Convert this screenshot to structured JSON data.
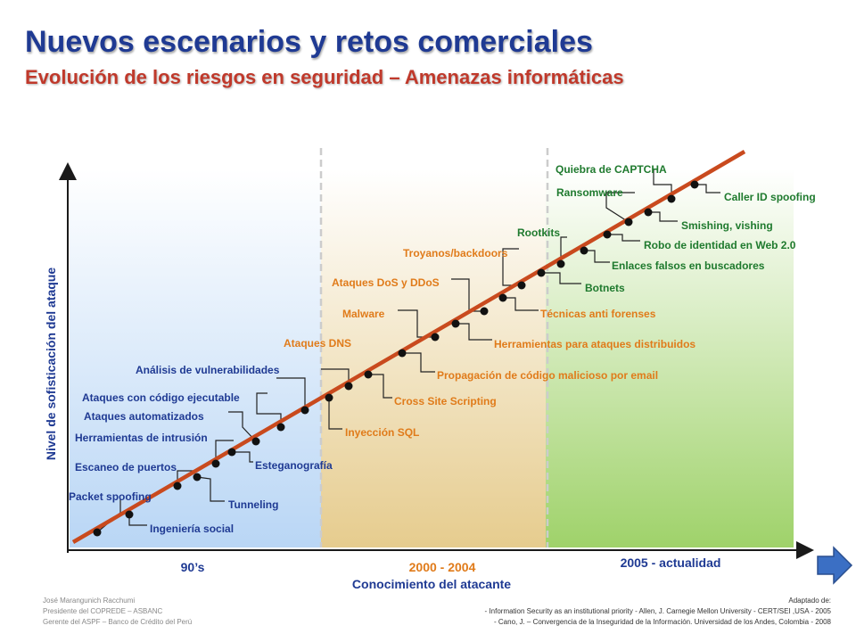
{
  "header": {
    "title": "Nuevos escenarios y retos comerciales",
    "subtitle": "Evolución de los riesgos en seguridad – Amenazas informáticas"
  },
  "axes": {
    "y_label": "Nivel de sofisticación del ataque",
    "x_label": "Conocimiento del atacante"
  },
  "periods": [
    {
      "label": "90’s",
      "color": "#1f3a93",
      "fill": "#cfe3f7"
    },
    {
      "label": "2000 - 2004",
      "color": "#e07b1a",
      "fill": "#f0e0b4"
    },
    {
      "label": "2005 - actualidad",
      "color": "#1f3a93",
      "fill": "#d6ecb0"
    }
  ],
  "threats": [
    {
      "label": "Packet spoofing",
      "color": "#1f3a93"
    },
    {
      "label": "Ingeniería social",
      "color": "#1f3a93"
    },
    {
      "label": "Escaneo de puertos",
      "color": "#1f3a93"
    },
    {
      "label": "Tunneling",
      "color": "#1f3a93"
    },
    {
      "label": "Herramientas de intrusión",
      "color": "#1f3a93"
    },
    {
      "label": "Esteganografía",
      "color": "#1f3a93"
    },
    {
      "label": "Ataques automatizados",
      "color": "#1f3a93"
    },
    {
      "label": "Ataques con código ejecutable",
      "color": "#1f3a93"
    },
    {
      "label": "Análisis de vulnerabilidades",
      "color": "#1f3a93"
    },
    {
      "label": "Inyección SQL",
      "color": "#e07b1a"
    },
    {
      "label": "Ataques DNS",
      "color": "#e07b1a"
    },
    {
      "label": "Cross Site Scripting",
      "color": "#e07b1a"
    },
    {
      "label": "Propagación de código malicioso por email",
      "color": "#e07b1a"
    },
    {
      "label": "Malware",
      "color": "#e07b1a"
    },
    {
      "label": "Herramientas para ataques distribuidos",
      "color": "#e07b1a"
    },
    {
      "label": "Ataques DoS y DDoS",
      "color": "#e07b1a"
    },
    {
      "label": "Técnicas anti forenses",
      "color": "#e07b1a"
    },
    {
      "label": "Troyanos/backdoors",
      "color": "#e07b1a"
    },
    {
      "label": "Botnets",
      "color": "#1f7a2e"
    },
    {
      "label": "Rootkits",
      "color": "#1f7a2e"
    },
    {
      "label": "Enlaces falsos en buscadores",
      "color": "#1f7a2e"
    },
    {
      "label": "Robo de identidad en Web 2.0",
      "color": "#1f7a2e"
    },
    {
      "label": "Smishing, vishing",
      "color": "#1f7a2e"
    },
    {
      "label": "Ransomware",
      "color": "#1f7a2e"
    },
    {
      "label": "Quiebra de CAPTCHA",
      "color": "#1f7a2e"
    },
    {
      "label": "Caller ID spoofing",
      "color": "#1f7a2e"
    }
  ],
  "footer": {
    "left": [
      "José Marangunich Racchumi",
      "Presidente del COPREDE – ASBANC",
      "Gerente del ASPF – Banco de Crédito del Perú"
    ],
    "right": [
      "Adaptado de:",
      "- Information Security as an institutional priority - Allen, J. Carnegie Mellon University - CERT/SEI ,USA - 2005",
      "- Cano, J. – Convergencia de la Inseguridad de la Información. Universidad de los Andes, Colombia - 2008"
    ]
  },
  "nav": {
    "next_icon": "arrow-right-icon",
    "color": "#3b6fc4"
  }
}
